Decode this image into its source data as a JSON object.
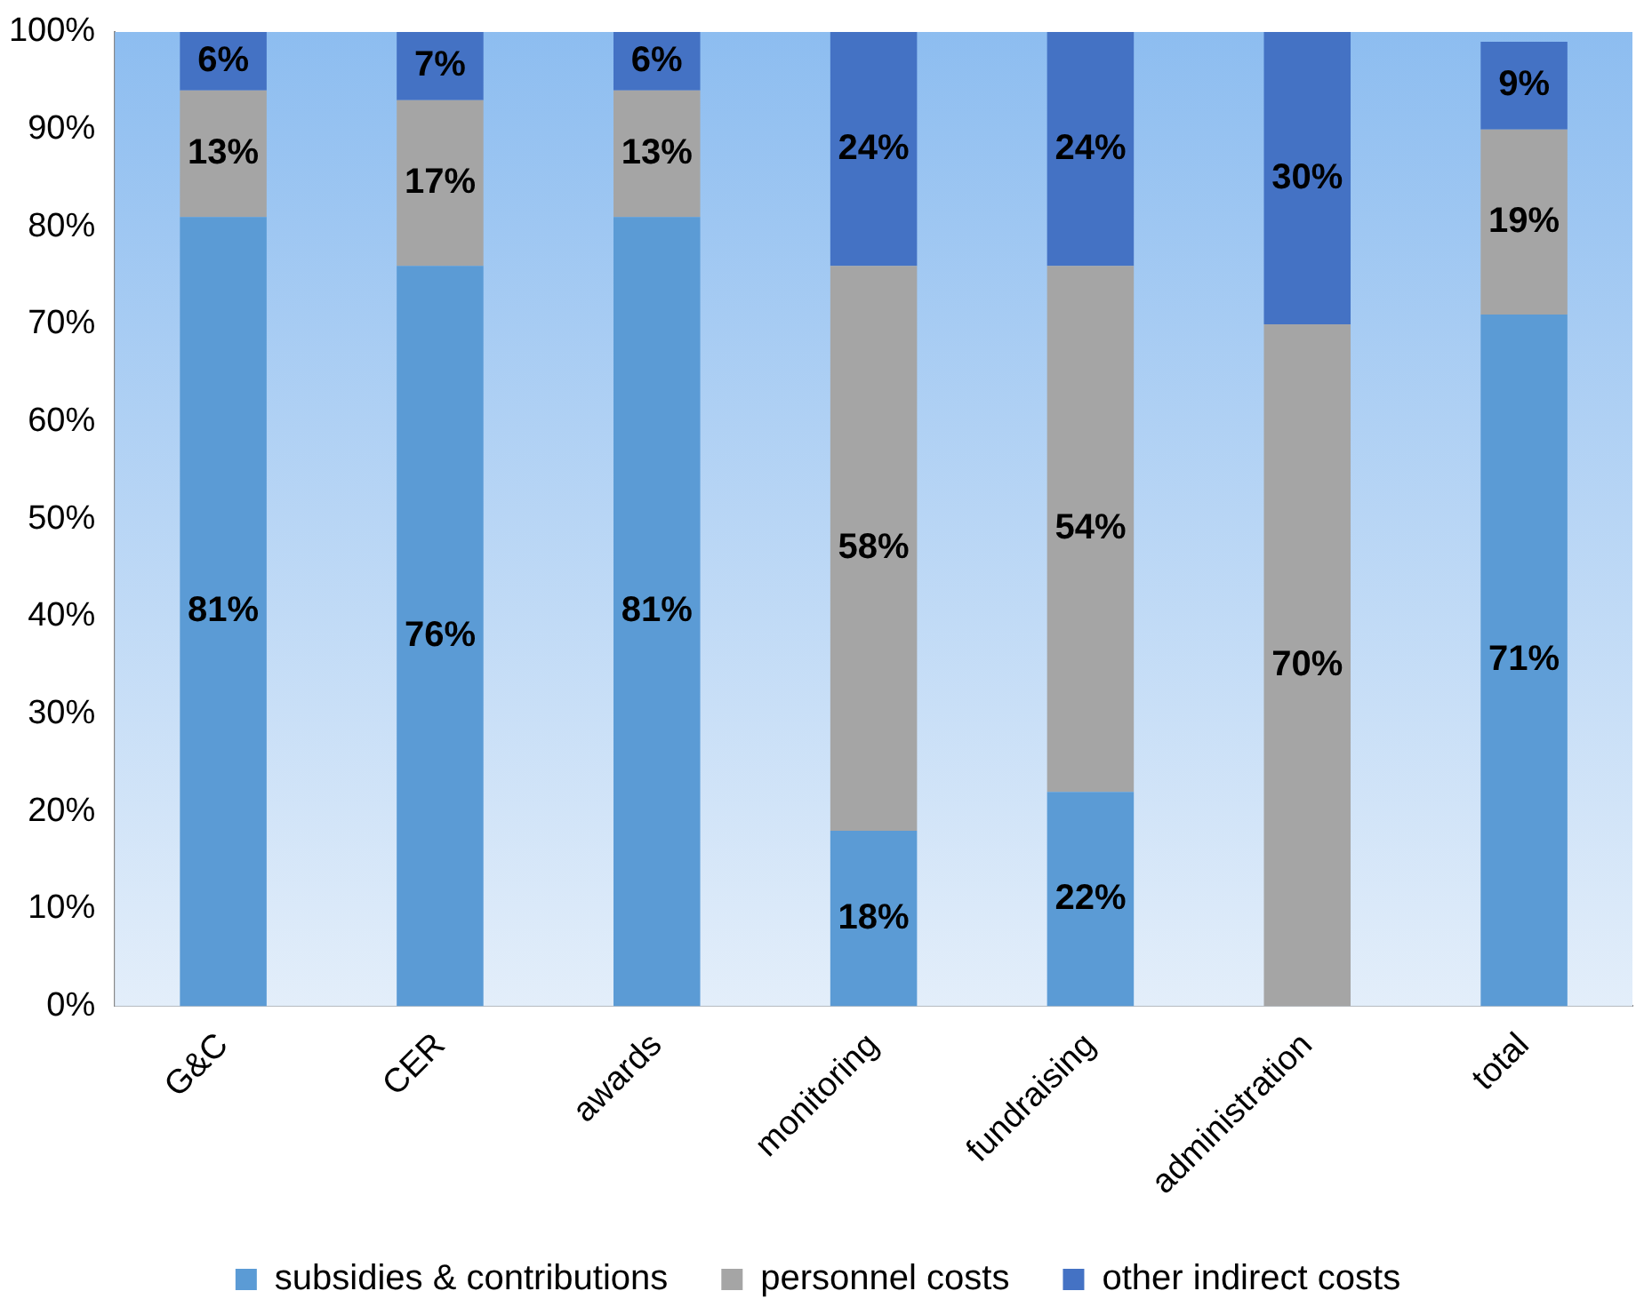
{
  "chart_data": {
    "type": "bar",
    "stacked": true,
    "categories": [
      "G&C",
      "CER",
      "awards",
      "monitoring",
      "fundraising",
      "administration",
      "total"
    ],
    "series": [
      {
        "name": "subsidies & contributions",
        "color": "#5b9bd5",
        "values": [
          81,
          76,
          81,
          18,
          22,
          null,
          71
        ],
        "value_labels": [
          "81%",
          "76%",
          "81%",
          "18%",
          "22%",
          null,
          "71%"
        ]
      },
      {
        "name": "personnel costs",
        "color": "#a5a5a5",
        "values": [
          13,
          17,
          13,
          58,
          54,
          70,
          19
        ],
        "value_labels": [
          "13%",
          "17%",
          "13%",
          "58%",
          "54%",
          "70%",
          "19%"
        ]
      },
      {
        "name": "other indirect costs",
        "color": "#4472c4",
        "values": [
          6,
          7,
          6,
          24,
          24,
          30,
          9
        ],
        "value_labels": [
          "6%",
          "7%",
          "6%",
          "24%",
          "24%",
          "30%",
          "9%"
        ]
      }
    ],
    "ylim": [
      0,
      100
    ],
    "yticks": [
      {
        "value": 0,
        "label": "0%"
      },
      {
        "value": 10,
        "label": "10%"
      },
      {
        "value": 20,
        "label": "20%"
      },
      {
        "value": 30,
        "label": "30%"
      },
      {
        "value": 40,
        "label": "40%"
      },
      {
        "value": 50,
        "label": "50%"
      },
      {
        "value": 60,
        "label": "60%"
      },
      {
        "value": 70,
        "label": "70%"
      },
      {
        "value": 80,
        "label": "80%"
      },
      {
        "value": 90,
        "label": "90%"
      },
      {
        "value": 100,
        "label": "100%"
      }
    ],
    "grid": false,
    "legend": "bottom"
  }
}
